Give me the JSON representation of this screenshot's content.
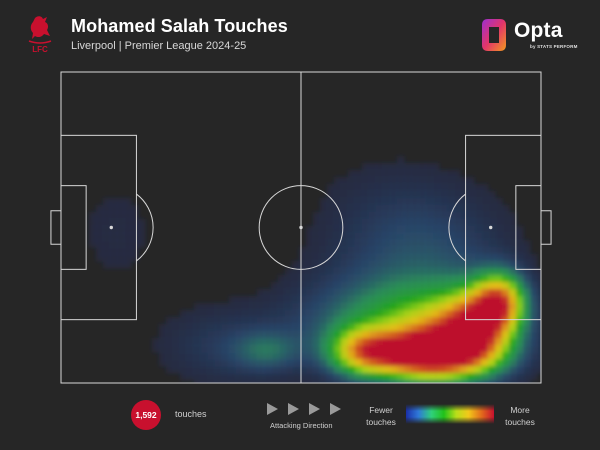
{
  "header": {
    "title": "Mohamed Salah Touches",
    "subtitle": "Liverpool | Premier League 2024-25",
    "club_crest_text": "LFC",
    "brand": "Opta",
    "brand_sub": "by STATS PERFORM"
  },
  "colors": {
    "background": "#262626",
    "pitch_lines": "#d8d8d8",
    "badge": "#c8102e",
    "crest": "#c8102e"
  },
  "chart_data": {
    "type": "heatmap",
    "title": "Mohamed Salah Touches",
    "subtitle": "Liverpool | Premier League 2024-25",
    "pitch": {
      "length": 105,
      "width": 68,
      "attacking_direction": "left-to-right"
    },
    "x_range": [
      0,
      105
    ],
    "y_range": [
      0,
      68
    ],
    "grid": false,
    "total_touches": 1592,
    "colorscale": [
      "#1a2fa8",
      "#2f78d8",
      "#2fd07a",
      "#21c11a",
      "#b8de1a",
      "#f2c81a",
      "#e26a1c",
      "#c8102e"
    ],
    "hotspots": [
      {
        "x": 80,
        "y": 62,
        "weight": 1.0,
        "sx": 9,
        "sy": 3.4
      },
      {
        "x": 96,
        "y": 50,
        "weight": 0.78,
        "sx": 3.8,
        "sy": 4.2
      },
      {
        "x": 91,
        "y": 55,
        "weight": 0.62,
        "sx": 5,
        "sy": 5
      },
      {
        "x": 66,
        "y": 61,
        "weight": 0.55,
        "sx": 5,
        "sy": 3.6
      },
      {
        "x": 85,
        "y": 58,
        "weight": 0.6,
        "sx": 9,
        "sy": 6
      },
      {
        "x": 72,
        "y": 55,
        "weight": 0.32,
        "sx": 14,
        "sy": 7
      },
      {
        "x": 45,
        "y": 61,
        "weight": 0.18,
        "sx": 5,
        "sy": 3
      },
      {
        "x": 36,
        "y": 60,
        "weight": 0.12,
        "sx": 10,
        "sy": 6
      },
      {
        "x": 82,
        "y": 40,
        "weight": 0.14,
        "sx": 12,
        "sy": 10
      },
      {
        "x": 70,
        "y": 35,
        "weight": 0.07,
        "sx": 12,
        "sy": 12
      },
      {
        "x": 12,
        "y": 35,
        "weight": 0.05,
        "sx": 9,
        "sy": 12
      }
    ]
  },
  "footer": {
    "touch_count": "1,592",
    "touch_label": "touches",
    "direction_label": "Attacking Direction",
    "legend_low_1": "Fewer",
    "legend_low_2": "touches",
    "legend_high_1": "More",
    "legend_high_2": "touches"
  }
}
